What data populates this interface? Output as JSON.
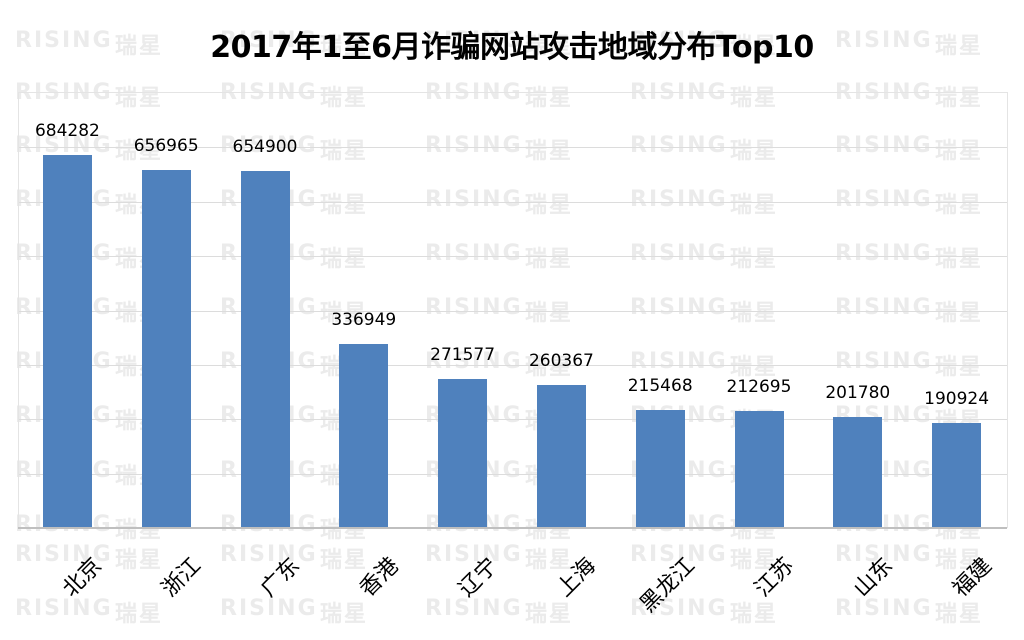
{
  "title": "2017年1至6月诈骗网站攻击地域分布Top10",
  "watermark": {
    "text_en": "RISING",
    "text_cn": "瑞星"
  },
  "colors": {
    "bar": "#4f81bd",
    "grid": "#dcdcdc",
    "axis": "#bfbfbf",
    "watermark": "#ebebeb"
  },
  "chart_data": {
    "type": "bar",
    "title": "2017年1至6月诈骗网站攻击地域分布Top10",
    "xlabel": "",
    "ylabel": "",
    "categories": [
      "北京",
      "浙江",
      "广东",
      "香港",
      "辽宁",
      "上海",
      "黑龙江",
      "江苏",
      "山东",
      "福建"
    ],
    "values": [
      684282,
      656965,
      654900,
      336949,
      271577,
      260367,
      215468,
      212695,
      201780,
      190924
    ],
    "ylim": [
      0,
      800000
    ],
    "y_gridline_step": 100000,
    "y_tick_labels_visible": false,
    "grid": true,
    "legend": null,
    "data_labels": true,
    "x_label_rotation": -45
  }
}
